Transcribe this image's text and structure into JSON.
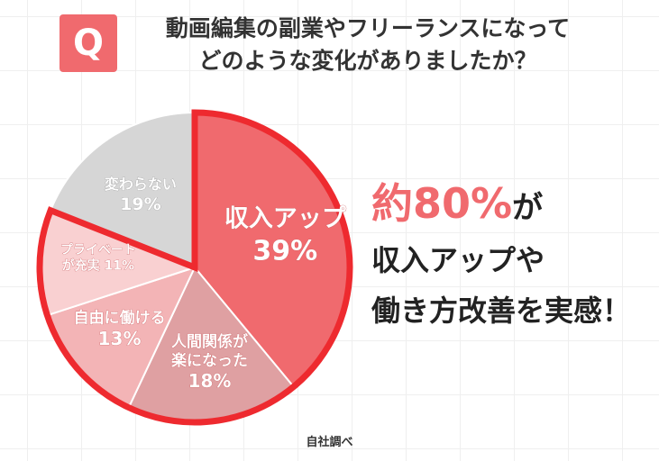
{
  "question": {
    "badge": "Q",
    "line1": "動画編集の副業やフリーランスになって",
    "line2": "どのような変化がありましたか？"
  },
  "chart_data": {
    "type": "pie",
    "start_angle_deg": 0,
    "slices": [
      {
        "name": "収入アップ",
        "value": 39,
        "label_lines": [
          "収入アップ",
          "39%"
        ],
        "color": "#f06a6e",
        "highlight": true
      },
      {
        "name": "人間関係が楽になった",
        "value": 18,
        "label_lines": [
          "人間関係が",
          "楽になった",
          "18%"
        ],
        "color": "#dfa0a2",
        "highlight": true
      },
      {
        "name": "自由に働ける",
        "value": 13,
        "label_lines": [
          "自由に働ける",
          "13%"
        ],
        "color": "#f3b4b6",
        "highlight": true
      },
      {
        "name": "プライベートが充実",
        "value": 11,
        "label_lines": [
          "プライベート",
          "が充実 11%"
        ],
        "color": "#f9d0d1",
        "highlight": true
      },
      {
        "name": "変わらない",
        "value": 19,
        "label_lines": [
          "変わらない",
          "19%"
        ],
        "color": "#d6d6d6",
        "highlight": false
      }
    ],
    "highlight_stroke": "#ee2a2f"
  },
  "summary": {
    "line1_big": "約80%",
    "line1_rest": "が",
    "line2": "収入アップや",
    "line3": "働き方改善を実感！"
  },
  "source": "自社調べ"
}
